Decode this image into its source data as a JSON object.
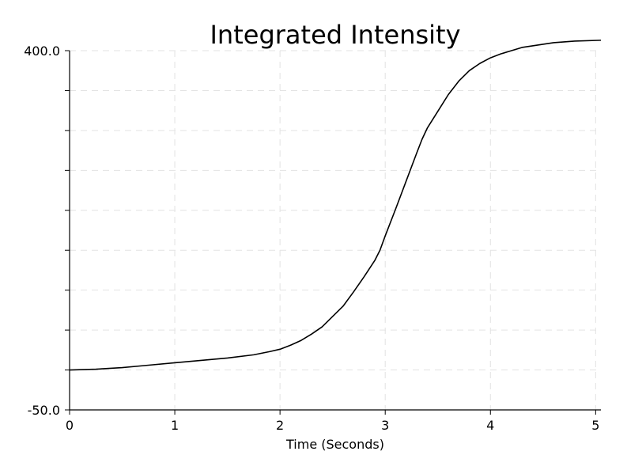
{
  "chart_data": {
    "type": "line",
    "title": "Integrated Intensity",
    "xlabel": "Time (Seconds)",
    "ylabel": "",
    "xlim": [
      0,
      5.05
    ],
    "ylim": [
      -50,
      400
    ],
    "x_ticks": [
      0,
      1,
      2,
      3,
      4,
      5
    ],
    "x_tick_labels": [
      "0",
      "1",
      "2",
      "3",
      "4",
      "5"
    ],
    "y_tick_labels": [
      "-50.0",
      "400.0"
    ],
    "y_minor_ticks": [
      0,
      50,
      100,
      150,
      200,
      250,
      300,
      350
    ],
    "grid": "dashed",
    "line_color": "#000000",
    "series": [
      {
        "x": [
          0,
          0.25,
          0.5,
          0.75,
          1.0,
          1.25,
          1.5,
          1.75,
          1.9,
          2.0,
          2.1,
          2.2,
          2.3,
          2.4,
          2.5,
          2.6,
          2.7,
          2.8,
          2.9,
          2.95,
          3.0,
          3.1,
          3.2,
          3.3,
          3.35,
          3.4,
          3.5,
          3.6,
          3.7,
          3.8,
          3.9,
          4.0,
          4.1,
          4.2,
          4.3,
          4.4,
          4.6,
          4.8,
          5.05
        ],
        "y": [
          0,
          1,
          3,
          6,
          9,
          12,
          15,
          19,
          23,
          26,
          31,
          37,
          45,
          54,
          67,
          80,
          98,
          117,
          137,
          150,
          168,
          202,
          237,
          272,
          289,
          303,
          324,
          345,
          362,
          375,
          384,
          391,
          396,
          400,
          404,
          406,
          410,
          412,
          413
        ]
      }
    ]
  }
}
